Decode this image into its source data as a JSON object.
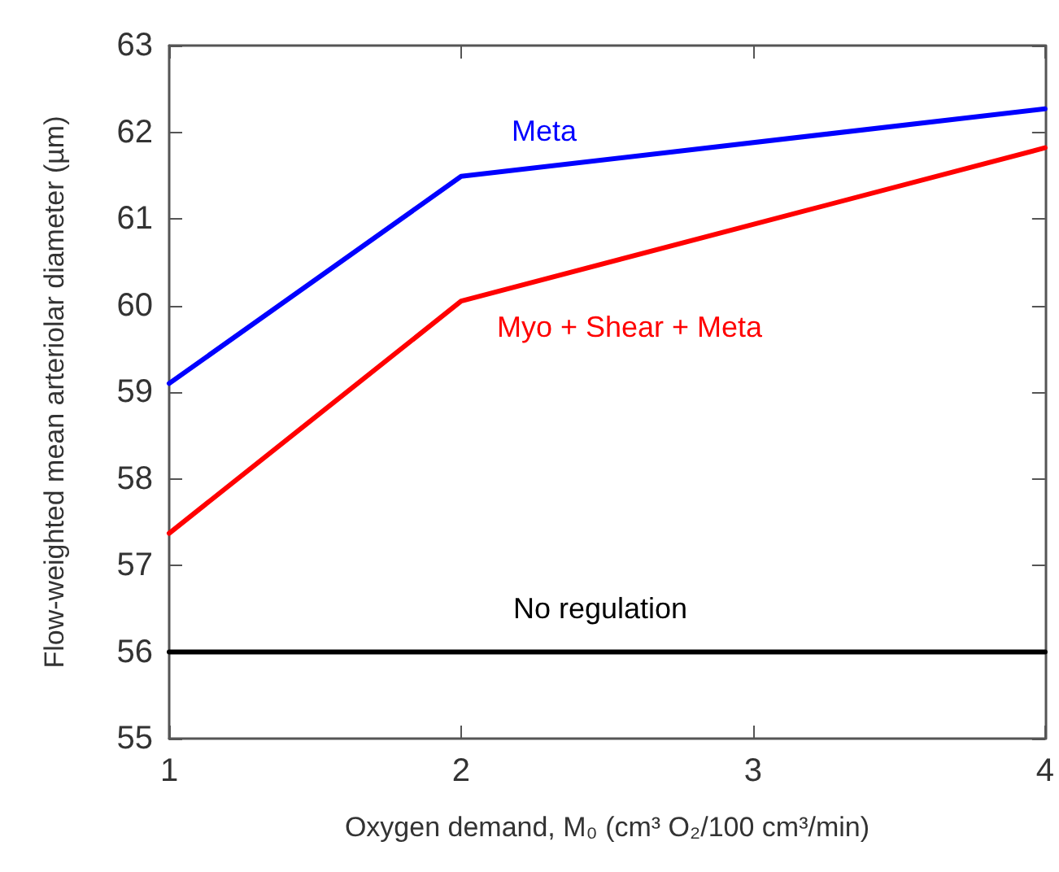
{
  "chart_data": {
    "type": "line",
    "xlabel": "Oxygen demand, M₀ (cm³ O₂/100 cm³/min)",
    "ylabel": "Flow-weighted mean arteriolar diameter (µm)",
    "x": [
      1,
      2,
      4
    ],
    "series": [
      {
        "name": "Meta",
        "color": "#0000ff",
        "values": [
          59.1,
          61.49,
          62.27
        ]
      },
      {
        "name": "Myo + Shear + Meta",
        "color": "#ff0000",
        "values": [
          57.37,
          60.05,
          61.82
        ]
      },
      {
        "name": "No regulation",
        "color": "#000000",
        "values": [
          56,
          56,
          56
        ]
      }
    ],
    "xlim": [
      1,
      4
    ],
    "xticks": [
      1,
      2,
      3,
      4
    ],
    "ylim": [
      55,
      63
    ],
    "yticks": [
      55,
      56,
      57,
      58,
      59,
      60,
      61,
      62,
      63
    ],
    "grid": false,
    "legend": false,
    "marker": "none",
    "line_style": "solid"
  }
}
